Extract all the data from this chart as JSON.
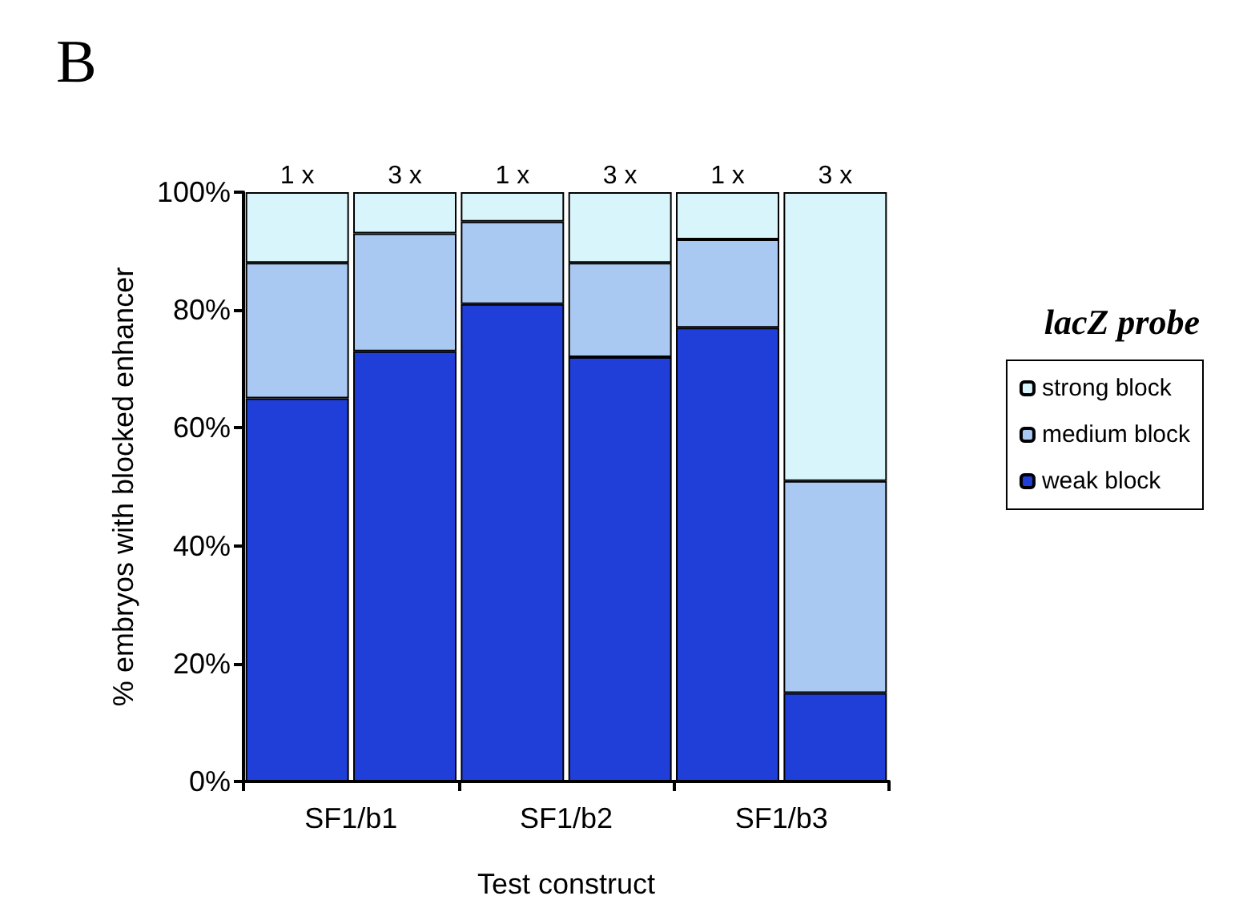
{
  "chart_data": {
    "type": "bar",
    "title": "B",
    "xlabel": "Test construct",
    "ylabel": "% embryos with blocked enhancer",
    "legend_title": "lacZ probe",
    "categories": [
      "1 x",
      "3 x",
      "1 x",
      "3 x",
      "1 x",
      "3 x"
    ],
    "annotations": [
      "SF1/b1",
      "SF1/b2",
      "SF1/b3"
    ],
    "stacked": true,
    "series": [
      {
        "name": "weak block",
        "color": "#1f3fd8",
        "values": [
          65,
          73,
          81,
          72,
          77,
          15
        ]
      },
      {
        "name": "medium block",
        "color": "#a9c9f2",
        "values": [
          23,
          20,
          14,
          16,
          15,
          36
        ]
      },
      {
        "name": "strong block",
        "color": "#d9f5fc",
        "values": [
          12,
          7,
          5,
          12,
          8,
          49
        ]
      }
    ],
    "ylim": [
      0,
      100
    ],
    "yticks": [
      {
        "value": 0,
        "label": "0%"
      },
      {
        "value": 20,
        "label": "20%"
      },
      {
        "value": 40,
        "label": "40%"
      },
      {
        "value": 60,
        "label": "60%"
      },
      {
        "value": 80,
        "label": "80%"
      },
      {
        "value": 100,
        "label": "100%"
      }
    ],
    "grid": false,
    "legend": "right"
  }
}
